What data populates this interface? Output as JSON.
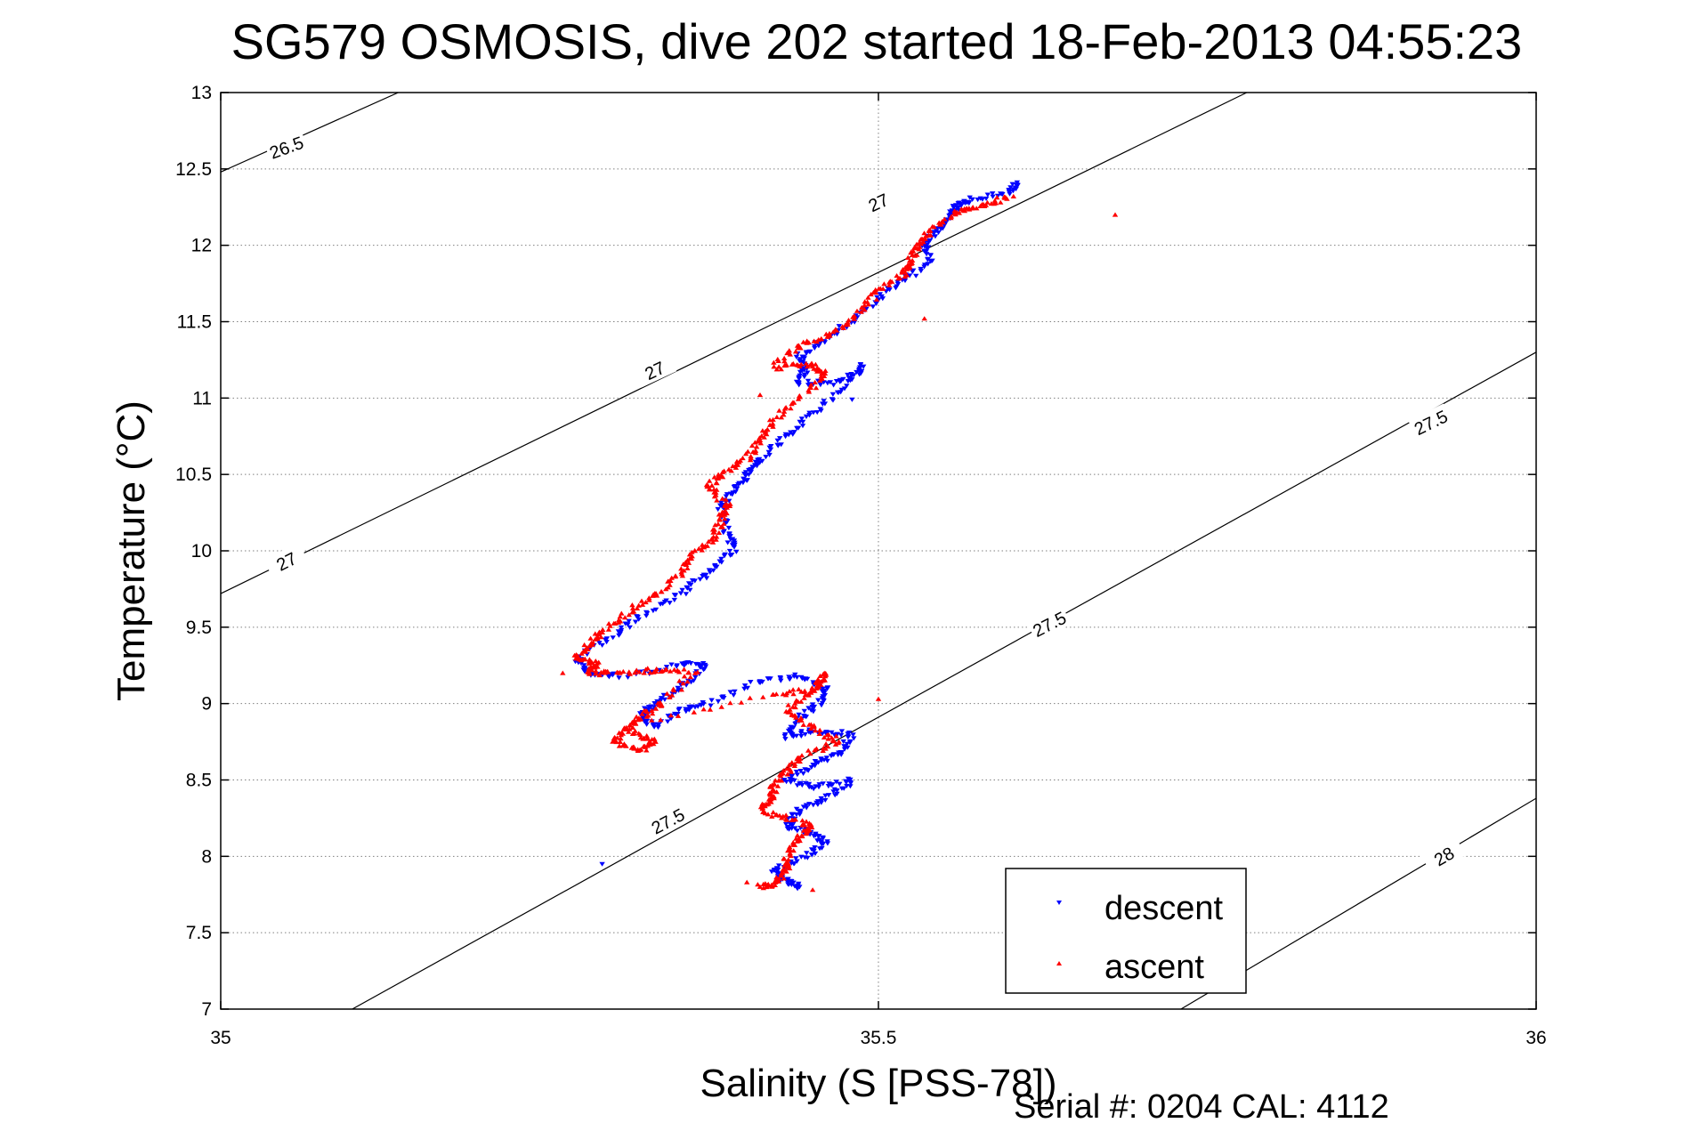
{
  "chart_data": {
    "type": "scatter",
    "title": "SG579 OSMOSIS, dive 202 started 18-Feb-2013 04:55:23",
    "xlabel": "Salinity (S [PSS-78])",
    "ylabel": "Temperature (°C)",
    "xlim": [
      35,
      36
    ],
    "ylim": [
      7,
      13
    ],
    "xticks": [
      "35",
      "35.5",
      "36"
    ],
    "yticks": [
      "7",
      "7.5",
      "8",
      "8.5",
      "9",
      "9.5",
      "10",
      "10.5",
      "11",
      "11.5",
      "12",
      "12.5",
      "13"
    ],
    "grid": true,
    "legend_position": "bottom-right",
    "footer": "Serial #: 0204  CAL: 4112",
    "colors": {
      "descent": "#0000ff",
      "ascent": "#ff0000",
      "contour": "#000000",
      "grid": "#808080"
    },
    "contours": [
      {
        "level": "26.5",
        "points": [
          [
            35.0,
            12.48
          ],
          [
            35.135,
            13.0
          ]
        ]
      },
      {
        "level": "27",
        "points": [
          [
            35.0,
            9.72
          ],
          [
            35.78,
            13.0
          ]
        ]
      },
      {
        "level": "27.5",
        "points": [
          [
            35.1,
            7.0
          ],
          [
            36.0,
            11.3
          ]
        ]
      },
      {
        "level": "28",
        "points": [
          [
            35.73,
            7.0
          ],
          [
            36.0,
            8.38
          ]
        ]
      }
    ],
    "contour_labels": [
      {
        "text": "26.5",
        "x": 35.05,
        "y": 12.64,
        "angle": -20
      },
      {
        "text": "27",
        "x": 35.5,
        "y": 12.28,
        "angle": -25
      },
      {
        "text": "27",
        "x": 35.33,
        "y": 11.18,
        "angle": -25
      },
      {
        "text": "27",
        "x": 35.05,
        "y": 9.93,
        "angle": -27
      },
      {
        "text": "27.5",
        "x": 35.92,
        "y": 10.84,
        "angle": -26
      },
      {
        "text": "27.5",
        "x": 35.63,
        "y": 9.52,
        "angle": -27
      },
      {
        "text": "27.5",
        "x": 35.34,
        "y": 8.23,
        "angle": -28
      },
      {
        "text": "28",
        "x": 35.93,
        "y": 8.0,
        "angle": -30
      }
    ],
    "series": [
      {
        "name": "descent",
        "marker": "triangle-down",
        "path": [
          [
            35.605,
            12.4
          ],
          [
            35.6,
            12.35
          ],
          [
            35.57,
            12.3
          ],
          [
            35.56,
            12.26
          ],
          [
            35.555,
            12.18
          ],
          [
            35.545,
            12.1
          ],
          [
            35.535,
            12.0
          ],
          [
            35.54,
            11.9
          ],
          [
            35.52,
            11.78
          ],
          [
            35.5,
            11.65
          ],
          [
            35.48,
            11.5
          ],
          [
            35.46,
            11.38
          ],
          [
            35.44,
            11.28
          ],
          [
            35.445,
            11.2
          ],
          [
            35.44,
            11.1
          ],
          [
            35.47,
            11.1
          ],
          [
            35.49,
            11.22
          ],
          [
            35.47,
            11.05
          ],
          [
            35.45,
            10.9
          ],
          [
            35.43,
            10.75
          ],
          [
            35.41,
            10.6
          ],
          [
            35.4,
            10.5
          ],
          [
            35.39,
            10.4
          ],
          [
            35.38,
            10.28
          ],
          [
            35.385,
            10.12
          ],
          [
            35.39,
            10.0
          ],
          [
            35.37,
            9.85
          ],
          [
            35.35,
            9.72
          ],
          [
            35.32,
            9.58
          ],
          [
            35.3,
            9.45
          ],
          [
            35.27,
            9.3
          ],
          [
            35.28,
            9.2
          ],
          [
            35.31,
            9.18
          ],
          [
            35.35,
            9.26
          ],
          [
            35.37,
            9.25
          ],
          [
            35.35,
            9.1
          ],
          [
            35.33,
            9.0
          ],
          [
            35.32,
            8.92
          ],
          [
            35.33,
            8.85
          ],
          [
            35.35,
            8.96
          ],
          [
            35.37,
            9.0
          ],
          [
            35.41,
            9.15
          ],
          [
            35.44,
            9.18
          ],
          [
            35.46,
            9.1
          ],
          [
            35.455,
            9.0
          ],
          [
            35.44,
            8.9
          ],
          [
            35.43,
            8.78
          ],
          [
            35.45,
            8.82
          ],
          [
            35.48,
            8.8
          ],
          [
            35.47,
            8.68
          ],
          [
            35.45,
            8.6
          ],
          [
            35.43,
            8.5
          ],
          [
            35.45,
            8.45
          ],
          [
            35.48,
            8.5
          ],
          [
            35.46,
            8.38
          ],
          [
            35.44,
            8.3
          ],
          [
            35.43,
            8.2
          ],
          [
            35.45,
            8.15
          ],
          [
            35.46,
            8.08
          ],
          [
            35.44,
            7.98
          ],
          [
            35.42,
            7.9
          ],
          [
            35.43,
            7.84
          ],
          [
            35.44,
            7.8
          ]
        ],
        "outliers": [
          [
            35.29,
            7.95
          ],
          [
            35.48,
            10.99
          ]
        ]
      },
      {
        "name": "ascent",
        "marker": "triangle-up",
        "path": [
          [
            35.6,
            12.32
          ],
          [
            35.58,
            12.26
          ],
          [
            35.56,
            12.22
          ],
          [
            35.54,
            12.1
          ],
          [
            35.53,
            12.0
          ],
          [
            35.525,
            11.9
          ],
          [
            35.52,
            11.82
          ],
          [
            35.5,
            11.7
          ],
          [
            35.485,
            11.55
          ],
          [
            35.465,
            11.42
          ],
          [
            35.44,
            11.35
          ],
          [
            35.42,
            11.2
          ],
          [
            35.45,
            11.22
          ],
          [
            35.46,
            11.15
          ],
          [
            35.44,
            11.0
          ],
          [
            35.42,
            10.85
          ],
          [
            35.41,
            10.72
          ],
          [
            35.4,
            10.6
          ],
          [
            35.38,
            10.5
          ],
          [
            35.37,
            10.42
          ],
          [
            35.385,
            10.3
          ],
          [
            35.38,
            10.2
          ],
          [
            35.375,
            10.08
          ],
          [
            35.36,
            9.98
          ],
          [
            35.35,
            9.85
          ],
          [
            35.33,
            9.72
          ],
          [
            35.31,
            9.6
          ],
          [
            35.29,
            9.48
          ],
          [
            35.28,
            9.38
          ],
          [
            35.27,
            9.3
          ],
          [
            35.285,
            9.26
          ],
          [
            35.28,
            9.2
          ],
          [
            35.3,
            9.2
          ],
          [
            35.33,
            9.22
          ],
          [
            35.36,
            9.21
          ],
          [
            35.335,
            9.0
          ],
          [
            35.32,
            8.92
          ],
          [
            35.31,
            8.82
          ],
          [
            35.33,
            8.75
          ],
          [
            35.32,
            8.7
          ],
          [
            35.3,
            8.75
          ],
          [
            35.31,
            8.85
          ],
          [
            35.42,
            9.05
          ],
          [
            35.45,
            9.1
          ],
          [
            35.46,
            9.2
          ],
          [
            35.45,
            9.08
          ],
          [
            35.43,
            8.95
          ],
          [
            35.45,
            8.85
          ],
          [
            35.47,
            8.75
          ],
          [
            35.44,
            8.65
          ],
          [
            35.43,
            8.55
          ],
          [
            35.42,
            8.45
          ],
          [
            35.42,
            8.38
          ],
          [
            35.41,
            8.3
          ],
          [
            35.43,
            8.25
          ],
          [
            35.45,
            8.2
          ],
          [
            35.44,
            8.12
          ],
          [
            35.43,
            8.0
          ],
          [
            35.43,
            7.9
          ],
          [
            35.42,
            7.82
          ],
          [
            35.41,
            7.8
          ]
        ],
        "outliers": [
          [
            35.68,
            12.2
          ],
          [
            35.535,
            11.52
          ],
          [
            35.41,
            11.02
          ],
          [
            35.5,
            9.03
          ],
          [
            35.4,
            7.83
          ],
          [
            35.45,
            7.78
          ],
          [
            35.26,
            9.2
          ]
        ]
      }
    ]
  }
}
